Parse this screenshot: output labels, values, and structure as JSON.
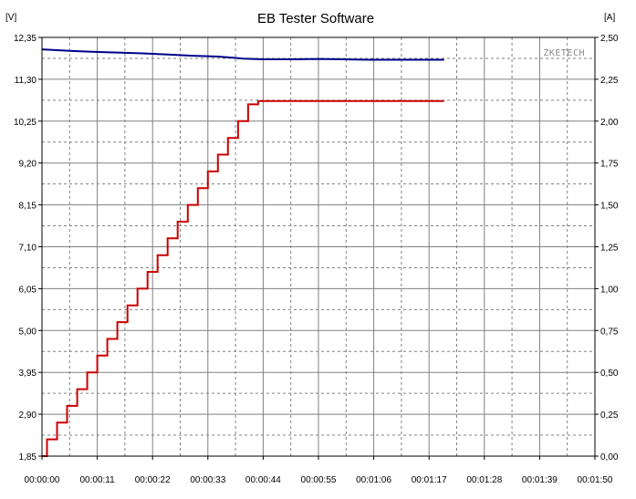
{
  "chart_data": {
    "type": "line",
    "title": "EB Tester Software",
    "watermark": "ZKETECH",
    "ylabel_left": "[V]",
    "ylabel_right": "[A]",
    "x_ticks": [
      "00:00:00",
      "00:00:11",
      "00:00:22",
      "00:00:33",
      "00:00:44",
      "00:00:55",
      "00:01:06",
      "00:01:17",
      "00:01:28",
      "00:01:39",
      "00:01:50"
    ],
    "y_left_ticks": [
      "12,35",
      "11,30",
      "10,25",
      "9,20",
      "8,15",
      "7,10",
      "6,05",
      "5,00",
      "3,95",
      "2,90",
      "1,85"
    ],
    "y_right_ticks": [
      "2,50",
      "2,25",
      "2,00",
      "1,75",
      "1,50",
      "1,25",
      "1,00",
      "0,75",
      "0,50",
      "0,25",
      "0,00"
    ],
    "xlim": [
      0,
      110
    ],
    "ylim_left": [
      1.85,
      12.35
    ],
    "ylim_right": [
      0,
      2.5
    ],
    "grid": true,
    "colors": {
      "voltage": "#00008b",
      "current": "#cc0000",
      "grid_major": "#808080",
      "grid_minor": "#808080"
    },
    "series": [
      {
        "axis": "left",
        "x": [
          0,
          3,
          6,
          10,
          15,
          20,
          25,
          30,
          35,
          38,
          40,
          44,
          50,
          55,
          60,
          65,
          70,
          80
        ],
        "values": [
          12.05,
          12.03,
          12.01,
          11.99,
          11.97,
          11.95,
          11.92,
          11.89,
          11.87,
          11.84,
          11.82,
          11.8,
          11.8,
          11.81,
          11.8,
          11.79,
          11.79,
          11.79
        ]
      },
      {
        "axis": "right",
        "step": true,
        "x": [
          0,
          1,
          3,
          5,
          7,
          9,
          11,
          13,
          15,
          17,
          19,
          21,
          23,
          25,
          27,
          29,
          31,
          33,
          35,
          37,
          39,
          41,
          43,
          80
        ],
        "values": [
          0.0,
          0.1,
          0.2,
          0.3,
          0.4,
          0.5,
          0.6,
          0.7,
          0.8,
          0.9,
          1.0,
          1.1,
          1.2,
          1.3,
          1.4,
          1.5,
          1.6,
          1.7,
          1.8,
          1.9,
          2.0,
          2.1,
          2.12,
          2.12
        ]
      }
    ]
  }
}
